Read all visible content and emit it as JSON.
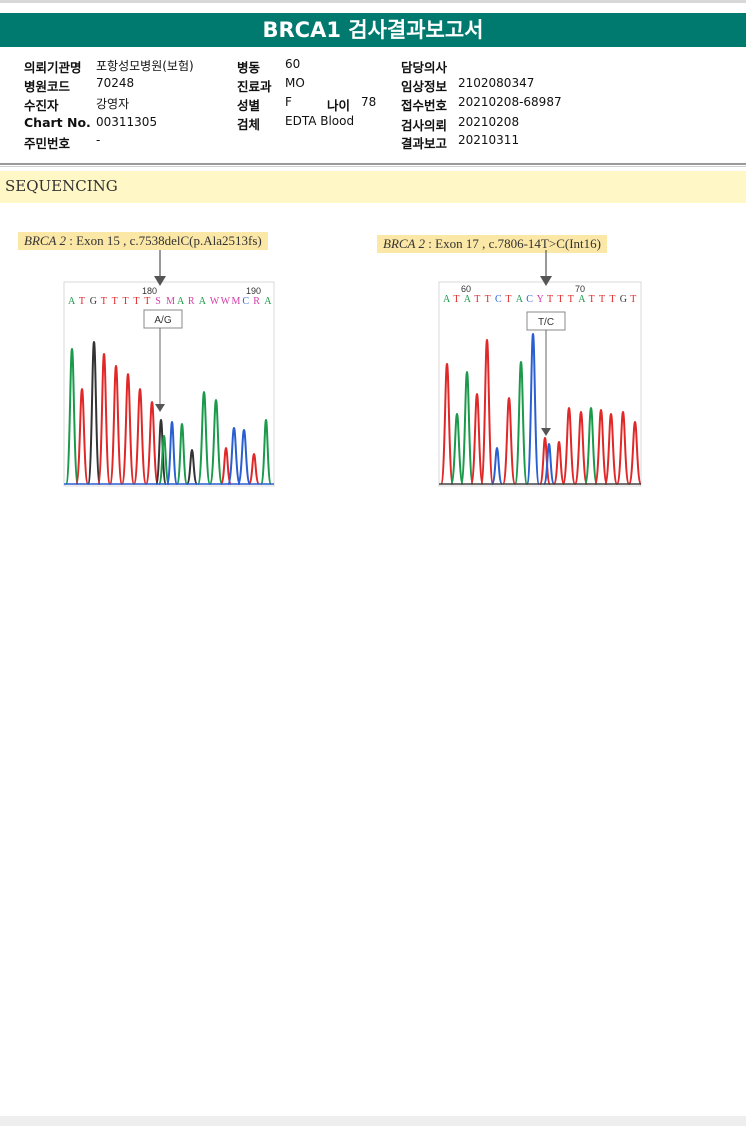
{
  "report": {
    "title": "BRCA1 검사결과보고서"
  },
  "info": {
    "institution_label": "의뢰기관명",
    "institution": "포항성모병원(보험)",
    "hospital_code_label": "병원코드",
    "hospital_code": "70248",
    "patient_label": "수진자",
    "patient": "강영자",
    "chart_no_label": "Chart No.",
    "chart_no": "00311305",
    "resident_no_label": "주민번호",
    "resident_no": "-",
    "ward_label": "병동",
    "ward": "60",
    "dept_label": "진료과",
    "dept": "MO",
    "sex_label": "성별",
    "sex": "F",
    "age_label": "나이",
    "age": "78",
    "specimen_label": "검체",
    "specimen": "EDTA Blood",
    "doctor_label": "담당의사",
    "doctor": "",
    "clinical_label": "임상정보",
    "clinical": "2102080347",
    "receipt_label": "접수번호",
    "receipt": "20210208-68987",
    "request_label": "검사의뢰",
    "request": "20210208",
    "report_label": "결과보고",
    "report": "20210311"
  },
  "section": {
    "label": "SEQUENCING"
  },
  "variants": [
    {
      "gene": "BRCA 2",
      "detail": ": Exon 15 , c.7538delC(p.Ala2513fs)",
      "ruler": [
        "180",
        "190"
      ],
      "bases": [
        "A",
        "T",
        "G",
        "T",
        "T",
        "T",
        "T",
        "T",
        "S",
        "M",
        "A",
        "R",
        "A",
        "W",
        "W",
        "M",
        "C",
        "R",
        "A"
      ],
      "call": "A/G"
    },
    {
      "gene": "BRCA 2",
      "detail": ": Exon 17 , c.7806-14T>C(Int16)",
      "ruler": [
        "60",
        "70"
      ],
      "bases": [
        "A",
        "T",
        "A",
        "T",
        "T",
        "C",
        "T",
        "A",
        "C",
        "Y",
        "T",
        "T",
        "T",
        "A",
        "T",
        "T",
        "T",
        "G",
        "T"
      ],
      "call": "T/C"
    }
  ],
  "colors": {
    "header": "#007a6e",
    "base_A": "#1a9a4a",
    "base_T": "#e02828",
    "base_G": "#333333",
    "base_C": "#2a5fd0",
    "base_ambiguous": "#d43ca8"
  }
}
